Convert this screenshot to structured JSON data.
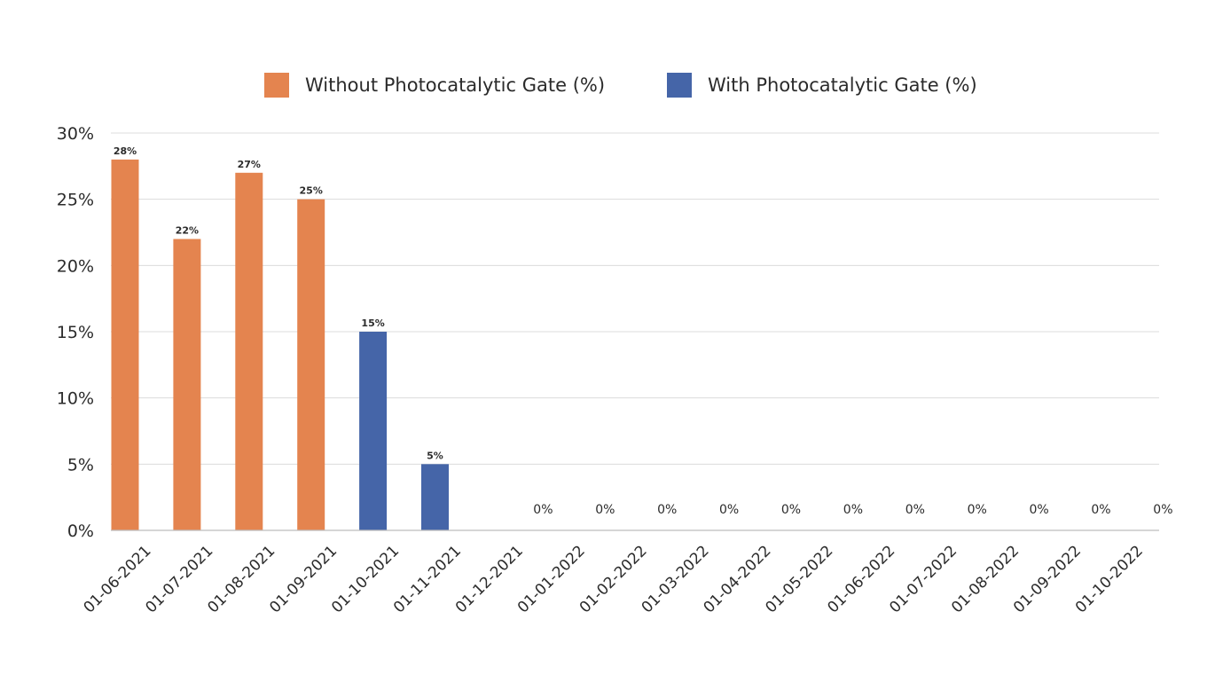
{
  "chart_data": {
    "type": "bar",
    "categories": [
      "01-06-2021",
      "01-07-2021",
      "01-08-2021",
      "01-09-2021",
      "01-10-2021",
      "01-11-2021",
      "01-12-2021",
      "01-01-2022",
      "01-02-2022",
      "01-03-2022",
      "01-04-2022",
      "01-05-2022",
      "01-06-2022",
      "01-07-2022",
      "01-08-2022",
      "01-09-2022",
      "01-10-2022"
    ],
    "series": [
      {
        "name": "Without Photocatalytic Gate (%)",
        "color": "#E4844F",
        "values": [
          28,
          22,
          27,
          25,
          null,
          null,
          null,
          null,
          null,
          null,
          null,
          null,
          null,
          null,
          null,
          null,
          null
        ],
        "labels": [
          "28%",
          "22%",
          "27%",
          "25%",
          "",
          "",
          "",
          "",
          "",
          "",
          "",
          "",
          "",
          "",
          "",
          "",
          ""
        ]
      },
      {
        "name": "With Photocatalytic Gate (%)",
        "color": "#4565A8",
        "values": [
          null,
          null,
          null,
          null,
          15,
          5,
          0,
          0,
          0,
          0,
          0,
          0,
          0,
          0,
          0,
          0,
          0
        ],
        "labels": [
          "",
          "",
          "",
          "",
          "15%",
          "5%",
          "0%",
          "0%",
          "0%",
          "0%",
          "0%",
          "0%",
          "0%",
          "0%",
          "0%",
          "0%",
          "0%"
        ]
      }
    ],
    "ylim": [
      0,
      30
    ],
    "yticks": [
      0,
      5,
      10,
      15,
      20,
      25,
      30
    ],
    "ytick_labels": [
      "0%",
      "5%",
      "10%",
      "15%",
      "20%",
      "25%",
      "30%"
    ],
    "grid": true,
    "legend_position": "top-center",
    "title": "",
    "xlabel": "",
    "ylabel": ""
  }
}
